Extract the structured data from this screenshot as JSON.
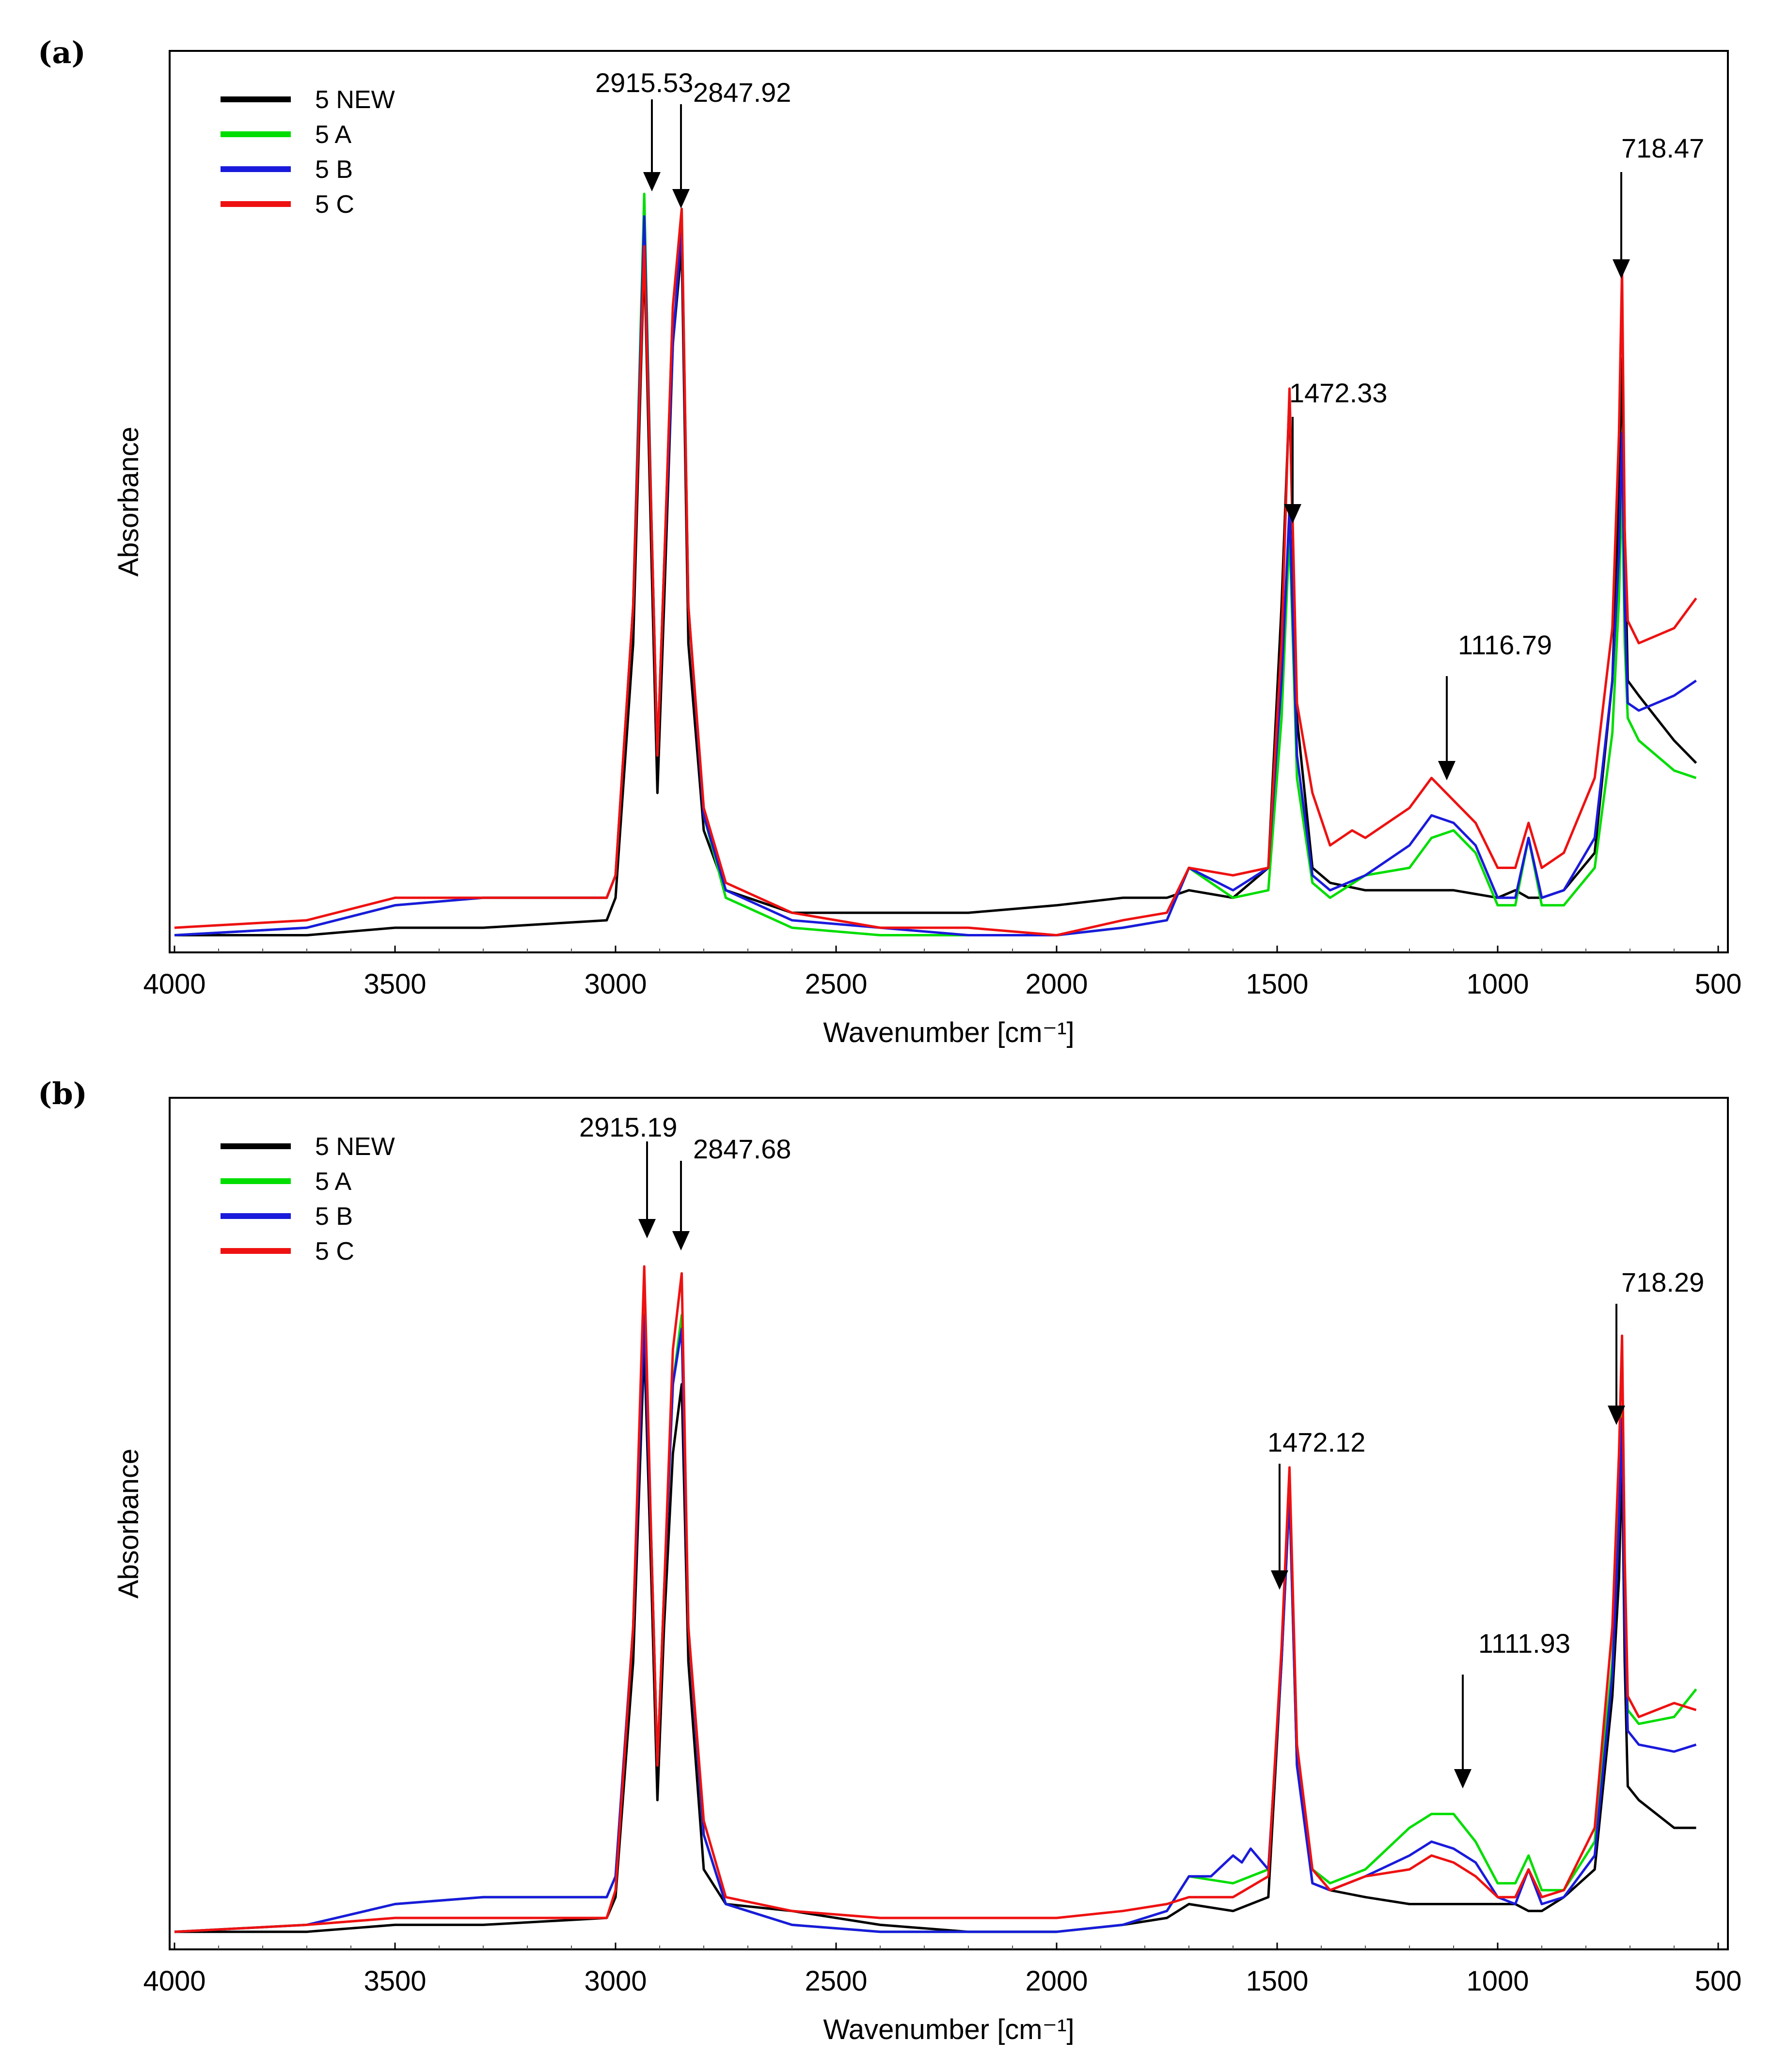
{
  "chart_data": [
    {
      "panel": "(a)",
      "type": "line",
      "xlabel": "Wavenumber [cm⁻¹]",
      "ylabel": "Absorbance",
      "xlim": [
        4000,
        500
      ],
      "ylim": [
        0,
        1
      ],
      "xticks": [
        4000,
        3500,
        3000,
        2500,
        2000,
        1500,
        1000,
        500
      ],
      "legend": {
        "position": "top-left",
        "entries": [
          "5 NEW",
          "5 A",
          "5 B",
          "5 C"
        ]
      },
      "series": [
        {
          "name": "5 NEW",
          "color": "#000000",
          "x": [
            4000,
            3700,
            3500,
            3300,
            3020,
            3000,
            2960,
            2935,
            2918,
            2905,
            2890,
            2870,
            2850,
            2835,
            2800,
            2750,
            2600,
            2400,
            2200,
            2000,
            1850,
            1750,
            1700,
            1600,
            1520,
            1490,
            1472,
            1455,
            1420,
            1380,
            1300,
            1200,
            1100,
            1000,
            960,
            930,
            900,
            850,
            780,
            740,
            725,
            718,
            712,
            705,
            680,
            600,
            550
          ],
          "y": [
            0.01,
            0.01,
            0.02,
            0.02,
            0.03,
            0.06,
            0.4,
            0.92,
            0.5,
            0.2,
            0.45,
            0.8,
            0.93,
            0.4,
            0.15,
            0.07,
            0.04,
            0.04,
            0.04,
            0.05,
            0.06,
            0.06,
            0.07,
            0.06,
            0.1,
            0.45,
            0.73,
            0.3,
            0.1,
            0.08,
            0.07,
            0.07,
            0.07,
            0.06,
            0.07,
            0.06,
            0.06,
            0.07,
            0.12,
            0.35,
            0.6,
            0.78,
            0.55,
            0.35,
            0.33,
            0.27,
            0.24
          ]
        },
        {
          "name": "5 A",
          "color": "#00dd00",
          "x": [
            4000,
            3700,
            3500,
            3300,
            3020,
            3000,
            2960,
            2935,
            2918,
            2905,
            2890,
            2870,
            2850,
            2835,
            2800,
            2750,
            2600,
            2400,
            2200,
            2000,
            1850,
            1750,
            1700,
            1600,
            1520,
            1490,
            1472,
            1455,
            1420,
            1380,
            1300,
            1200,
            1150,
            1100,
            1050,
            1000,
            960,
            930,
            900,
            850,
            780,
            740,
            725,
            718,
            712,
            705,
            680,
            600,
            550
          ],
          "y": [
            0.01,
            0.02,
            0.05,
            0.06,
            0.06,
            0.09,
            0.45,
            1.0,
            0.55,
            0.25,
            0.5,
            0.85,
            0.98,
            0.45,
            0.17,
            0.06,
            0.02,
            0.01,
            0.01,
            0.01,
            0.02,
            0.03,
            0.1,
            0.06,
            0.07,
            0.3,
            0.55,
            0.22,
            0.08,
            0.06,
            0.09,
            0.1,
            0.14,
            0.15,
            0.12,
            0.05,
            0.05,
            0.14,
            0.05,
            0.05,
            0.1,
            0.28,
            0.46,
            0.62,
            0.4,
            0.3,
            0.27,
            0.23,
            0.22
          ]
        },
        {
          "name": "5 B",
          "color": "#1a1adc",
          "x": [
            4000,
            3700,
            3500,
            3300,
            3020,
            3000,
            2960,
            2935,
            2918,
            2905,
            2890,
            2870,
            2850,
            2835,
            2800,
            2750,
            2600,
            2400,
            2200,
            2000,
            1850,
            1750,
            1700,
            1600,
            1520,
            1490,
            1472,
            1455,
            1420,
            1380,
            1300,
            1200,
            1150,
            1100,
            1050,
            1000,
            960,
            930,
            900,
            850,
            780,
            740,
            725,
            718,
            712,
            705,
            680,
            600,
            550
          ],
          "y": [
            0.01,
            0.02,
            0.05,
            0.06,
            0.06,
            0.09,
            0.45,
            0.97,
            0.55,
            0.25,
            0.5,
            0.8,
            0.96,
            0.45,
            0.17,
            0.07,
            0.03,
            0.02,
            0.01,
            0.01,
            0.02,
            0.03,
            0.1,
            0.07,
            0.1,
            0.35,
            0.58,
            0.25,
            0.09,
            0.07,
            0.09,
            0.13,
            0.17,
            0.16,
            0.13,
            0.06,
            0.06,
            0.14,
            0.06,
            0.07,
            0.14,
            0.35,
            0.52,
            0.68,
            0.45,
            0.32,
            0.31,
            0.33,
            0.35
          ]
        },
        {
          "name": "5 C",
          "color": "#ee1111",
          "x": [
            4000,
            3700,
            3500,
            3300,
            3020,
            3000,
            2960,
            2935,
            2918,
            2905,
            2890,
            2870,
            2850,
            2835,
            2800,
            2750,
            2600,
            2400,
            2200,
            2000,
            1850,
            1750,
            1700,
            1600,
            1520,
            1490,
            1472,
            1455,
            1420,
            1380,
            1330,
            1300,
            1200,
            1150,
            1100,
            1050,
            1000,
            960,
            930,
            900,
            850,
            780,
            740,
            725,
            718,
            712,
            705,
            680,
            600,
            550
          ],
          "y": [
            0.02,
            0.03,
            0.06,
            0.06,
            0.06,
            0.09,
            0.45,
            0.93,
            0.55,
            0.25,
            0.5,
            0.85,
            0.98,
            0.45,
            0.18,
            0.08,
            0.04,
            0.02,
            0.02,
            0.01,
            0.03,
            0.04,
            0.1,
            0.09,
            0.1,
            0.4,
            0.74,
            0.32,
            0.2,
            0.13,
            0.15,
            0.14,
            0.18,
            0.22,
            0.19,
            0.16,
            0.1,
            0.1,
            0.16,
            0.1,
            0.12,
            0.22,
            0.42,
            0.68,
            0.9,
            0.55,
            0.43,
            0.4,
            0.42,
            0.46
          ]
        }
      ],
      "annotations": [
        {
          "label": "2915.53",
          "x": 2915.53
        },
        {
          "label": "2847.92",
          "x": 2847.92
        },
        {
          "label": "1472.33",
          "x": 1472.33
        },
        {
          "label": "1116.79",
          "x": 1116.79
        },
        {
          "label": "718.47",
          "x": 718.47
        }
      ]
    },
    {
      "panel": "(b)",
      "type": "line",
      "xlabel": "Wavenumber [cm⁻¹]",
      "ylabel": "Absorbance",
      "xlim": [
        4000,
        500
      ],
      "ylim": [
        0,
        1
      ],
      "xticks": [
        4000,
        3500,
        3000,
        2500,
        2000,
        1500,
        1000,
        500
      ],
      "legend": {
        "position": "top-left",
        "entries": [
          "5 NEW",
          "5 A",
          "5 B",
          "5 C"
        ]
      },
      "series": [
        {
          "name": "5 NEW",
          "color": "#000000",
          "x": [
            4000,
            3700,
            3500,
            3300,
            3020,
            3000,
            2960,
            2935,
            2918,
            2905,
            2890,
            2870,
            2850,
            2835,
            2800,
            2750,
            2600,
            2400,
            2200,
            2000,
            1850,
            1750,
            1700,
            1600,
            1520,
            1490,
            1472,
            1455,
            1420,
            1380,
            1300,
            1200,
            1100,
            1000,
            960,
            930,
            900,
            850,
            780,
            740,
            725,
            718,
            712,
            705,
            680,
            600,
            550
          ],
          "y": [
            0.01,
            0.01,
            0.02,
            0.02,
            0.03,
            0.06,
            0.4,
            0.86,
            0.5,
            0.2,
            0.45,
            0.7,
            0.8,
            0.4,
            0.1,
            0.05,
            0.04,
            0.02,
            0.01,
            0.01,
            0.02,
            0.03,
            0.05,
            0.04,
            0.06,
            0.4,
            0.65,
            0.25,
            0.08,
            0.07,
            0.06,
            0.05,
            0.05,
            0.05,
            0.05,
            0.04,
            0.04,
            0.06,
            0.1,
            0.35,
            0.52,
            0.7,
            0.4,
            0.22,
            0.2,
            0.16,
            0.16
          ]
        },
        {
          "name": "5 A",
          "color": "#00dd00",
          "x": [
            4000,
            3700,
            3500,
            3300,
            3020,
            3000,
            2960,
            2935,
            2918,
            2905,
            2890,
            2870,
            2850,
            2835,
            2800,
            2750,
            2600,
            2400,
            2200,
            2000,
            1850,
            1750,
            1700,
            1600,
            1520,
            1490,
            1472,
            1455,
            1420,
            1380,
            1300,
            1200,
            1150,
            1100,
            1050,
            1000,
            960,
            930,
            900,
            850,
            780,
            740,
            725,
            718,
            712,
            705,
            680,
            600,
            550
          ],
          "y": [
            0.01,
            0.02,
            0.05,
            0.06,
            0.06,
            0.09,
            0.45,
            0.93,
            0.55,
            0.25,
            0.5,
            0.8,
            0.9,
            0.45,
            0.15,
            0.05,
            0.02,
            0.01,
            0.01,
            0.01,
            0.02,
            0.04,
            0.09,
            0.08,
            0.1,
            0.4,
            0.64,
            0.25,
            0.1,
            0.08,
            0.1,
            0.16,
            0.18,
            0.18,
            0.14,
            0.08,
            0.08,
            0.12,
            0.07,
            0.07,
            0.14,
            0.4,
            0.62,
            0.76,
            0.48,
            0.33,
            0.31,
            0.32,
            0.36
          ]
        },
        {
          "name": "5 B",
          "color": "#1a1adc",
          "x": [
            4000,
            3700,
            3500,
            3300,
            3020,
            3000,
            2960,
            2935,
            2918,
            2905,
            2890,
            2870,
            2850,
            2835,
            2800,
            2750,
            2600,
            2400,
            2200,
            2000,
            1850,
            1750,
            1700,
            1650,
            1600,
            1580,
            1560,
            1520,
            1490,
            1472,
            1455,
            1420,
            1380,
            1300,
            1200,
            1150,
            1100,
            1050,
            1000,
            960,
            930,
            900,
            850,
            780,
            740,
            725,
            718,
            712,
            705,
            680,
            600,
            550
          ],
          "y": [
            0.01,
            0.02,
            0.05,
            0.06,
            0.06,
            0.09,
            0.45,
            0.9,
            0.55,
            0.25,
            0.5,
            0.8,
            0.88,
            0.45,
            0.15,
            0.05,
            0.02,
            0.01,
            0.01,
            0.01,
            0.02,
            0.04,
            0.09,
            0.09,
            0.12,
            0.11,
            0.13,
            0.1,
            0.4,
            0.64,
            0.25,
            0.08,
            0.07,
            0.09,
            0.12,
            0.14,
            0.13,
            0.11,
            0.06,
            0.05,
            0.1,
            0.05,
            0.06,
            0.12,
            0.38,
            0.6,
            0.75,
            0.46,
            0.3,
            0.28,
            0.27,
            0.28
          ]
        },
        {
          "name": "5 C",
          "color": "#ee1111",
          "x": [
            4000,
            3700,
            3500,
            3300,
            3020,
            3000,
            2960,
            2935,
            2918,
            2905,
            2890,
            2870,
            2850,
            2835,
            2800,
            2750,
            2600,
            2400,
            2200,
            2000,
            1850,
            1750,
            1700,
            1600,
            1520,
            1490,
            1472,
            1455,
            1420,
            1380,
            1300,
            1200,
            1150,
            1100,
            1050,
            1000,
            960,
            930,
            900,
            850,
            780,
            740,
            725,
            718,
            712,
            705,
            680,
            600,
            550
          ],
          "y": [
            0.01,
            0.02,
            0.03,
            0.03,
            0.03,
            0.07,
            0.45,
            0.97,
            0.55,
            0.25,
            0.5,
            0.85,
            0.96,
            0.45,
            0.17,
            0.06,
            0.04,
            0.03,
            0.03,
            0.03,
            0.04,
            0.05,
            0.06,
            0.06,
            0.09,
            0.42,
            0.68,
            0.28,
            0.1,
            0.07,
            0.09,
            0.1,
            0.12,
            0.11,
            0.09,
            0.06,
            0.06,
            0.1,
            0.06,
            0.07,
            0.16,
            0.45,
            0.7,
            0.87,
            0.55,
            0.35,
            0.32,
            0.34,
            0.33
          ]
        }
      ],
      "annotations": [
        {
          "label": "2915.19",
          "x": 2915.19
        },
        {
          "label": "2847.68",
          "x": 2847.68
        },
        {
          "label": "1472.12",
          "x": 1472.12
        },
        {
          "label": "1111.93",
          "x": 1111.93
        },
        {
          "label": "718.29",
          "x": 718.29
        }
      ]
    }
  ]
}
